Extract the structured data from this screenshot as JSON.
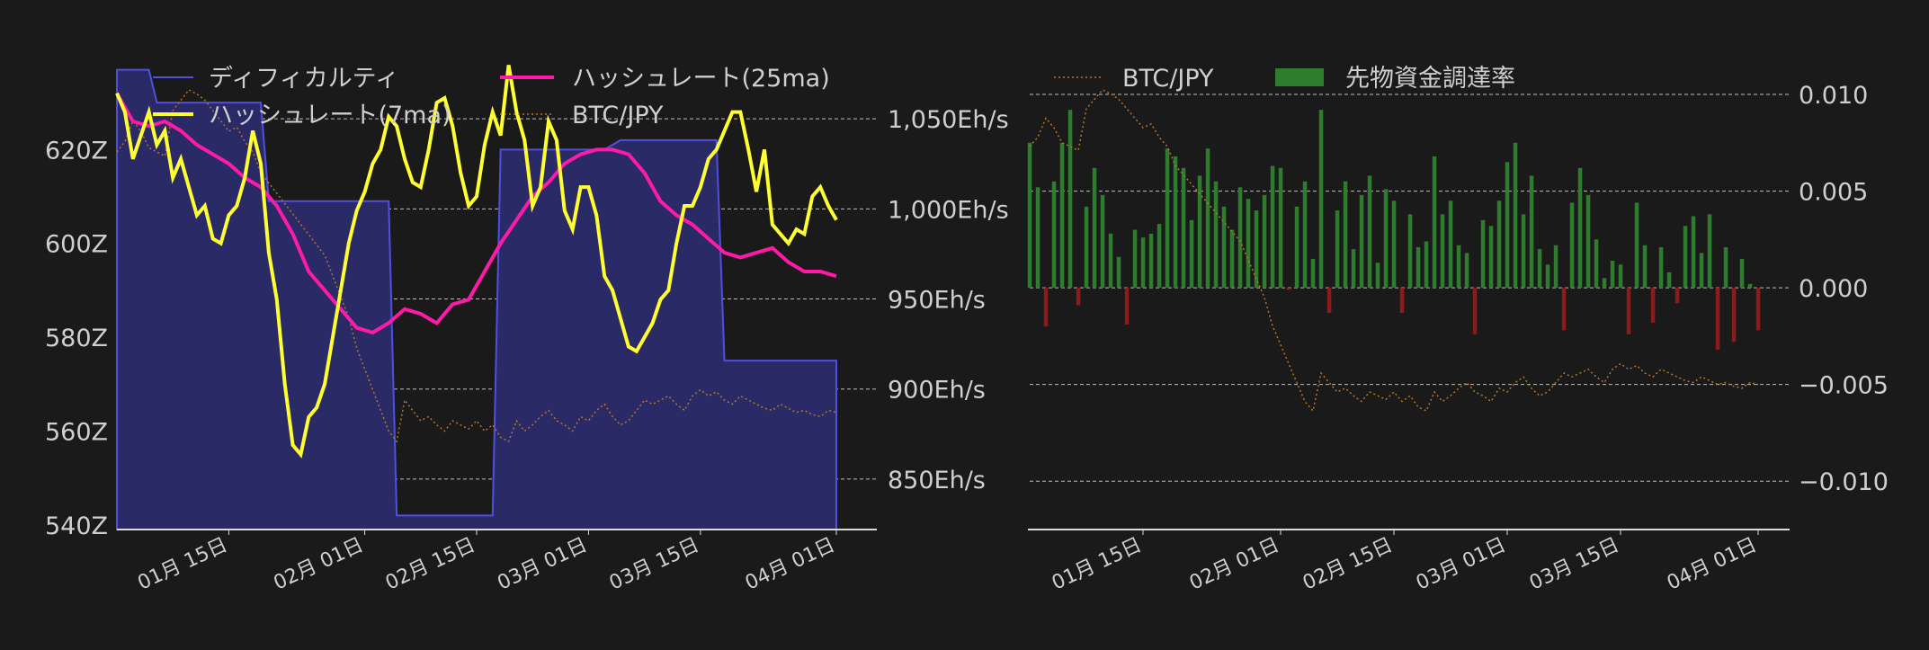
{
  "chart_data": [
    {
      "type": "line",
      "x_ticks": [
        "01月 15日",
        "02月 01日",
        "02月 15日",
        "03月 01日",
        "03月 15日",
        "04月 01日"
      ],
      "x_tick_days": [
        14,
        31,
        45,
        59,
        73,
        90
      ],
      "x_range_days": [
        0,
        90
      ],
      "left_axis": {
        "ticks": [
          "540Z",
          "560Z",
          "580Z",
          "600Z",
          "620Z"
        ],
        "tick_values": [
          540,
          560,
          580,
          600,
          620
        ],
        "range": [
          539,
          640
        ]
      },
      "right_axis": {
        "ticks": [
          "850Eh/s",
          "900Eh/s",
          "950Eh/s",
          "1,000Eh/s",
          "1,050Eh/s"
        ],
        "tick_values": [
          850,
          900,
          950,
          1000,
          1050
        ],
        "range": [
          822,
          1085
        ]
      },
      "btc_range": [
        14000000,
        16000000
      ],
      "grid": "horizontal dashed",
      "legend": {
        "position": "top",
        "items": [
          {
            "label": "ディフィカルティ",
            "color": "#4f4fd6"
          },
          {
            "label": "ハッシュレート(25ma)",
            "color": "#ff1aa8"
          },
          {
            "label": "ハッシュレート(7ma)",
            "color": "#ffff33"
          },
          {
            "label": "BTC/JPY",
            "color": "#b5762a"
          }
        ]
      },
      "series": [
        {
          "name": "ディフィカルティ",
          "axis": "left",
          "color": "#4f4fd6",
          "x": [
            0,
            4,
            5,
            18,
            19,
            34,
            35,
            47,
            48,
            61,
            63,
            75,
            76,
            90
          ],
          "values": [
            637,
            637,
            630,
            630,
            609,
            609,
            542,
            542,
            620,
            620,
            622,
            622,
            575,
            575
          ]
        },
        {
          "name": "ハッシュレート(25ma)",
          "axis": "left",
          "color": "#ff1aa8",
          "x": [
            0,
            2,
            4,
            6,
            8,
            10,
            12,
            14,
            16,
            18,
            20,
            22,
            24,
            26,
            28,
            30,
            32,
            34,
            36,
            38,
            40,
            42,
            44,
            46,
            48,
            50,
            52,
            54,
            56,
            58,
            60,
            62,
            64,
            66,
            68,
            70,
            72,
            74,
            76,
            78,
            80,
            82,
            84,
            86,
            88,
            90
          ],
          "values": [
            632,
            626,
            625,
            626,
            624,
            621,
            619,
            617,
            614,
            612,
            608,
            602,
            594,
            590,
            586,
            582,
            581,
            583,
            586,
            585,
            583,
            587,
            588,
            594,
            600,
            605,
            610,
            613,
            617,
            619,
            620,
            620,
            619,
            615,
            609,
            606,
            604,
            601,
            598,
            597,
            598,
            599,
            596,
            594,
            594,
            593
          ]
        },
        {
          "name": "ハッシュレート(7ma)",
          "axis": "left",
          "color": "#ffff33",
          "x": [
            0,
            1,
            2,
            3,
            4,
            5,
            6,
            7,
            8,
            9,
            10,
            11,
            12,
            13,
            14,
            15,
            16,
            17,
            18,
            19,
            20,
            21,
            22,
            23,
            24,
            25,
            26,
            27,
            28,
            29,
            30,
            31,
            32,
            33,
            34,
            35,
            36,
            37,
            38,
            39,
            40,
            41,
            42,
            43,
            44,
            45,
            46,
            47,
            48,
            49,
            50,
            51,
            52,
            53,
            54,
            55,
            56,
            57,
            58,
            59,
            60,
            61,
            62,
            63,
            64,
            65,
            66,
            67,
            68,
            69,
            70,
            71,
            72,
            73,
            74,
            75,
            76,
            77,
            78,
            79,
            80,
            81,
            82,
            83,
            84,
            85,
            86,
            87,
            88,
            89,
            90
          ],
          "values": [
            632,
            628,
            618,
            623,
            628,
            621,
            624,
            614,
            618,
            612,
            606,
            608,
            601,
            600,
            606,
            608,
            614,
            624,
            617,
            598,
            588,
            570,
            557,
            555,
            563,
            565,
            570,
            580,
            590,
            600,
            607,
            611,
            617,
            620,
            627,
            625,
            618,
            613,
            612,
            620,
            630,
            631,
            625,
            615,
            608,
            610,
            621,
            628,
            623,
            638,
            628,
            622,
            608,
            612,
            626,
            622,
            607,
            603,
            612,
            612,
            606,
            593,
            590,
            584,
            578,
            577,
            580,
            583,
            588,
            590,
            600,
            608,
            608,
            612,
            618,
            620,
            624,
            628,
            628,
            620,
            611,
            620,
            604,
            602,
            600,
            603,
            602,
            610,
            612,
            608,
            605
          ]
        },
        {
          "name": "BTC/JPY",
          "axis": "btc",
          "color": "#b5762a",
          "x": [
            0,
            1,
            2,
            3,
            4,
            5,
            6,
            7,
            8,
            9,
            10,
            11,
            12,
            13,
            14,
            15,
            16,
            17,
            18,
            19,
            20,
            21,
            22,
            23,
            24,
            25,
            26,
            27,
            28,
            29,
            30,
            31,
            32,
            33,
            34,
            35,
            36,
            37,
            38,
            39,
            40,
            41,
            42,
            43,
            44,
            45,
            46,
            47,
            48,
            49,
            50,
            51,
            52,
            53,
            54,
            55,
            56,
            57,
            58,
            59,
            60,
            61,
            62,
            63,
            64,
            65,
            66,
            67,
            68,
            69,
            70,
            71,
            72,
            73,
            74,
            75,
            76,
            77,
            78,
            79,
            80,
            81,
            82,
            83,
            84,
            85,
            86,
            87,
            88,
            89,
            90
          ],
          "values": [
            15700000,
            15750000,
            15850000,
            15800000,
            15720000,
            15700000,
            15680000,
            15900000,
            15950000,
            16000000,
            15980000,
            15950000,
            15900000,
            15850000,
            15800000,
            15820000,
            15750000,
            15700000,
            15600000,
            15550000,
            15500000,
            15450000,
            15400000,
            15350000,
            15300000,
            15250000,
            15200000,
            15100000,
            15000000,
            14900000,
            14750000,
            14650000,
            14550000,
            14450000,
            14350000,
            14300000,
            14500000,
            14450000,
            14400000,
            14420000,
            14380000,
            14350000,
            14400000,
            14380000,
            14360000,
            14400000,
            14350000,
            14380000,
            14320000,
            14300000,
            14400000,
            14350000,
            14380000,
            14420000,
            14450000,
            14400000,
            14380000,
            14350000,
            14420000,
            14400000,
            14450000,
            14480000,
            14420000,
            14380000,
            14400000,
            14450000,
            14500000,
            14480000,
            14500000,
            14520000,
            14480000,
            14450000,
            14520000,
            14550000,
            14520000,
            14540000,
            14500000,
            14480000,
            14520000,
            14500000,
            14480000,
            14460000,
            14450000,
            14480000,
            14460000,
            14440000,
            14450000,
            14430000,
            14420000,
            14450000,
            14440000
          ]
        }
      ]
    },
    {
      "type": "bar",
      "x_ticks": [
        "01月 15日",
        "02月 01日",
        "02月 15日",
        "03月 01日",
        "03月 15日",
        "04月 01日"
      ],
      "x_tick_days": [
        14,
        31,
        45,
        59,
        73,
        90
      ],
      "x_range_days": [
        0,
        90
      ],
      "right_axis": {
        "ticks": [
          "−0.010",
          "−0.005",
          "0.000",
          "0.005",
          "0.010"
        ],
        "tick_values": [
          -0.01,
          -0.005,
          0.0,
          0.005,
          0.01
        ],
        "range": [
          -0.0125,
          0.012
        ]
      },
      "btc_range": [
        14000000,
        16000000
      ],
      "grid": "horizontal dashed",
      "legend": {
        "position": "top-left",
        "items": [
          {
            "label": "BTC/JPY",
            "color": "#b5762a"
          },
          {
            "label": "先物資金調達率",
            "color": "#2e7d2e"
          }
        ]
      },
      "positive_color": "#2e7d2e",
      "negative_color": "#8b1c1c",
      "series": [
        {
          "name": "先物資金調達率",
          "x": [
            0,
            1,
            2,
            3,
            4,
            5,
            6,
            7,
            8,
            9,
            10,
            11,
            12,
            13,
            14,
            15,
            16,
            17,
            18,
            19,
            20,
            21,
            22,
            23,
            24,
            25,
            26,
            27,
            28,
            29,
            30,
            31,
            32,
            33,
            34,
            35,
            36,
            37,
            38,
            39,
            40,
            41,
            42,
            43,
            44,
            45,
            46,
            47,
            48,
            49,
            50,
            51,
            52,
            53,
            54,
            55,
            56,
            57,
            58,
            59,
            60,
            61,
            62,
            63,
            64,
            65,
            66,
            67,
            68,
            69,
            70,
            71,
            72,
            73,
            74,
            75,
            76,
            77,
            78,
            79,
            80,
            81,
            82,
            83,
            84,
            85,
            86,
            87,
            88,
            89,
            90
          ],
          "values": [
            0.0075,
            0.0052,
            -0.002,
            0.0055,
            0.0075,
            0.0092,
            -0.0009,
            0.0042,
            0.0062,
            0.0048,
            0.0028,
            0.0016,
            -0.0019,
            0.003,
            0.0026,
            0.0028,
            0.0033,
            0.0072,
            0.0068,
            0.0062,
            0.0035,
            0.0058,
            0.0072,
            0.0055,
            0.0042,
            0.003,
            0.0052,
            0.0046,
            0.004,
            0.0048,
            0.0063,
            0.0062,
            -0.0001,
            0.0042,
            0.0055,
            0.0015,
            0.0092,
            -0.0013,
            0.004,
            0.0055,
            0.002,
            0.0048,
            0.0058,
            0.0013,
            0.0051,
            0.0045,
            -0.0013,
            0.0038,
            0.0021,
            0.0024,
            0.0068,
            0.0038,
            0.0045,
            0.0022,
            0.0018,
            -0.0024,
            0.0035,
            0.0032,
            0.0045,
            0.0065,
            0.0075,
            0.0038,
            0.0058,
            0.002,
            0.0012,
            0.0022,
            -0.0022,
            0.0044,
            0.0062,
            0.0048,
            0.0025,
            0.0005,
            0.0014,
            0.0012,
            -0.0024,
            0.0044,
            0.0022,
            -0.0018,
            0.0021,
            0.0008,
            -0.0008,
            0.0032,
            0.0037,
            0.0018,
            0.0038,
            -0.0032,
            0.0021,
            -0.0028,
            0.0015,
            0.0002,
            -0.0022
          ]
        },
        {
          "name": "BTC/JPY",
          "x": [
            0,
            1,
            2,
            3,
            4,
            5,
            6,
            7,
            8,
            9,
            10,
            11,
            12,
            13,
            14,
            15,
            16,
            17,
            18,
            19,
            20,
            21,
            22,
            23,
            24,
            25,
            26,
            27,
            28,
            29,
            30,
            31,
            32,
            33,
            34,
            35,
            36,
            37,
            38,
            39,
            40,
            41,
            42,
            43,
            44,
            45,
            46,
            47,
            48,
            49,
            50,
            51,
            52,
            53,
            54,
            55,
            56,
            57,
            58,
            59,
            60,
            61,
            62,
            63,
            64,
            65,
            66,
            67,
            68,
            69,
            70,
            71,
            72,
            73,
            74,
            75,
            76,
            77,
            78,
            79,
            80,
            81,
            82,
            83,
            84,
            85,
            86,
            87,
            88,
            89,
            90
          ],
          "values": [
            15700000,
            15750000,
            15850000,
            15800000,
            15720000,
            15700000,
            15680000,
            15900000,
            15950000,
            16000000,
            15980000,
            15950000,
            15900000,
            15850000,
            15800000,
            15820000,
            15750000,
            15700000,
            15600000,
            15550000,
            15500000,
            15450000,
            15400000,
            15350000,
            15300000,
            15250000,
            15200000,
            15100000,
            15000000,
            14900000,
            14750000,
            14650000,
            14550000,
            14450000,
            14350000,
            14300000,
            14500000,
            14450000,
            14400000,
            14420000,
            14380000,
            14350000,
            14400000,
            14380000,
            14360000,
            14400000,
            14350000,
            14380000,
            14320000,
            14300000,
            14400000,
            14350000,
            14380000,
            14420000,
            14450000,
            14400000,
            14380000,
            14350000,
            14420000,
            14400000,
            14450000,
            14480000,
            14420000,
            14380000,
            14400000,
            14450000,
            14500000,
            14480000,
            14500000,
            14520000,
            14480000,
            14450000,
            14520000,
            14550000,
            14520000,
            14540000,
            14500000,
            14480000,
            14520000,
            14500000,
            14480000,
            14460000,
            14450000,
            14480000,
            14460000,
            14440000,
            14450000,
            14430000,
            14420000,
            14450000,
            14440000
          ]
        }
      ]
    }
  ]
}
